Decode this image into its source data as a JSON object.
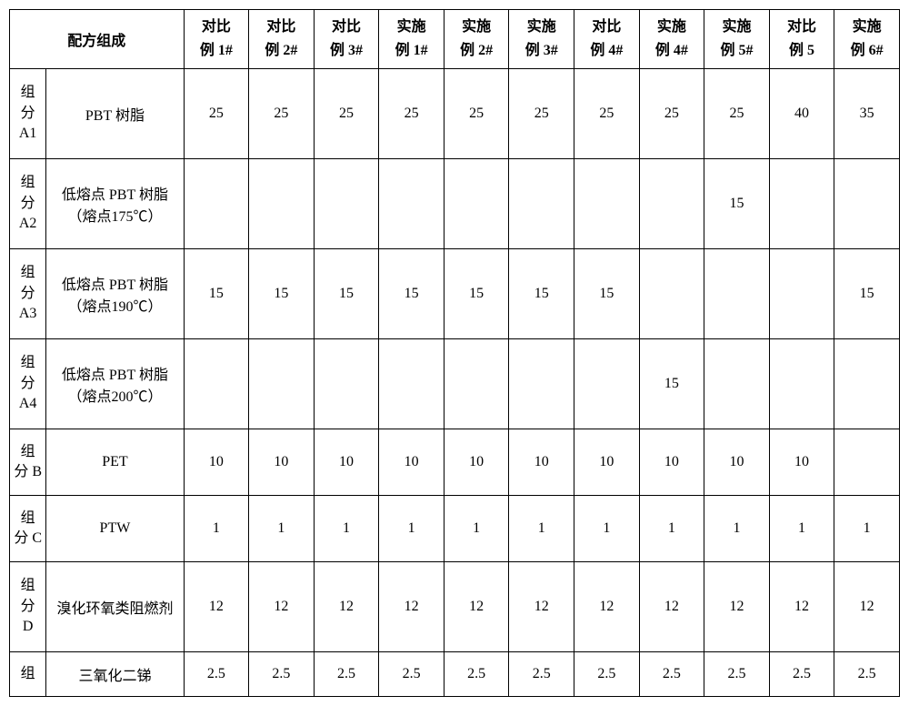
{
  "table": {
    "type": "table",
    "background_color": "#ffffff",
    "border_color": "#000000",
    "text_color": "#000000",
    "font_size_pt": 12,
    "header": {
      "merged_label": "配方组成",
      "columns": [
        {
          "l1": "对比",
          "l2": "例 1#"
        },
        {
          "l1": "对比",
          "l2": "例 2#"
        },
        {
          "l1": "对比",
          "l2": "例 3#"
        },
        {
          "l1": "实施",
          "l2": "例 1#"
        },
        {
          "l1": "实施",
          "l2": "例 2#"
        },
        {
          "l1": "实施",
          "l2": "例 3#"
        },
        {
          "l1": "对比",
          "l2": "例 4#"
        },
        {
          "l1": "实施",
          "l2": "例 4#"
        },
        {
          "l1": "实施",
          "l2": "例 5#"
        },
        {
          "l1": "对比",
          "l2": "例 5"
        },
        {
          "l1": "实施",
          "l2": "例 6#"
        }
      ]
    },
    "rows": [
      {
        "row_label_lines": [
          "组",
          "分",
          "A1"
        ],
        "ingredient": "PBT 树脂",
        "values": [
          "25",
          "25",
          "25",
          "25",
          "25",
          "25",
          "25",
          "25",
          "25",
          "40",
          "35"
        ]
      },
      {
        "row_label_lines": [
          "组",
          "分",
          "A2"
        ],
        "ingredient": "低熔点 PBT 树脂（熔点175℃）",
        "values": [
          "",
          "",
          "",
          "",
          "",
          "",
          "",
          "",
          "15",
          "",
          ""
        ]
      },
      {
        "row_label_lines": [
          "组",
          "分",
          "A3"
        ],
        "ingredient": "低熔点 PBT 树脂（熔点190℃）",
        "values": [
          "15",
          "15",
          "15",
          "15",
          "15",
          "15",
          "15",
          "",
          "",
          "",
          "15"
        ]
      },
      {
        "row_label_lines": [
          "组",
          "分",
          "A4"
        ],
        "ingredient": "低熔点 PBT 树脂（熔点200℃）",
        "values": [
          "",
          "",
          "",
          "",
          "",
          "",
          "",
          "15",
          "",
          "",
          ""
        ]
      },
      {
        "row_label_lines": [
          "组",
          "分 B"
        ],
        "ingredient": "PET",
        "values": [
          "10",
          "10",
          "10",
          "10",
          "10",
          "10",
          "10",
          "10",
          "10",
          "10",
          ""
        ]
      },
      {
        "row_label_lines": [
          "组",
          "分 C"
        ],
        "ingredient": "PTW",
        "values": [
          "1",
          "1",
          "1",
          "1",
          "1",
          "1",
          "1",
          "1",
          "1",
          "1",
          "1"
        ]
      },
      {
        "row_label_lines": [
          "组",
          "分",
          "D"
        ],
        "ingredient": "溴化环氧类阻燃剂",
        "values": [
          "12",
          "12",
          "12",
          "12",
          "12",
          "12",
          "12",
          "12",
          "12",
          "12",
          "12"
        ]
      },
      {
        "row_label_lines": [
          "组"
        ],
        "ingredient": "三氧化二锑",
        "values": [
          "2.5",
          "2.5",
          "2.5",
          "2.5",
          "2.5",
          "2.5",
          "2.5",
          "2.5",
          "2.5",
          "2.5",
          "2.5"
        ]
      }
    ]
  }
}
